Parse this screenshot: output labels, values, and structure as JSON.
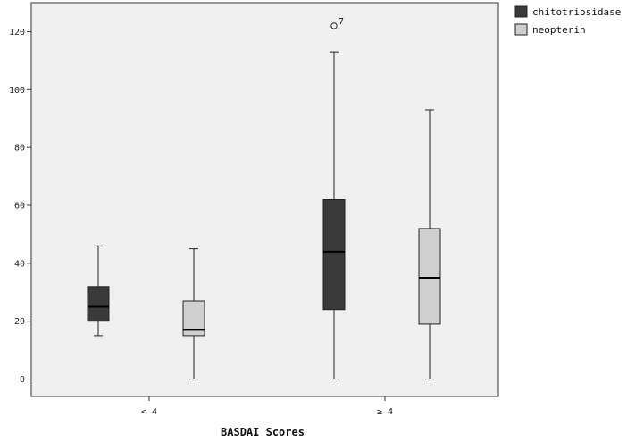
{
  "chart_data": {
    "type": "boxplot",
    "title": "",
    "xlabel": "BASDAI Scores",
    "ylabel": "",
    "ylim": [
      -6,
      130
    ],
    "yticks": [
      0,
      20,
      40,
      60,
      80,
      100,
      120
    ],
    "categories": [
      "< 4",
      "≥ 4"
    ],
    "grid": false,
    "legend": "top-right",
    "series": [
      {
        "name": "chitotriosidase",
        "color": "#3a3a3a",
        "boxes": [
          {
            "min": 15,
            "q1": 20,
            "median": 25,
            "q3": 32,
            "max": 46
          },
          {
            "min": 0,
            "q1": 24,
            "median": 44,
            "q3": 62,
            "max": 113
          }
        ]
      },
      {
        "name": "neopterin",
        "color": "#cfcfcf",
        "boxes": [
          {
            "min": 0,
            "q1": 15,
            "median": 17,
            "q3": 27,
            "max": 45
          },
          {
            "min": 0,
            "q1": 19,
            "median": 35,
            "q3": 52,
            "max": 93
          }
        ]
      }
    ],
    "outliers": [
      {
        "category": "≥ 4",
        "series": "chitotriosidase",
        "value": 122,
        "label": "7"
      }
    ]
  }
}
